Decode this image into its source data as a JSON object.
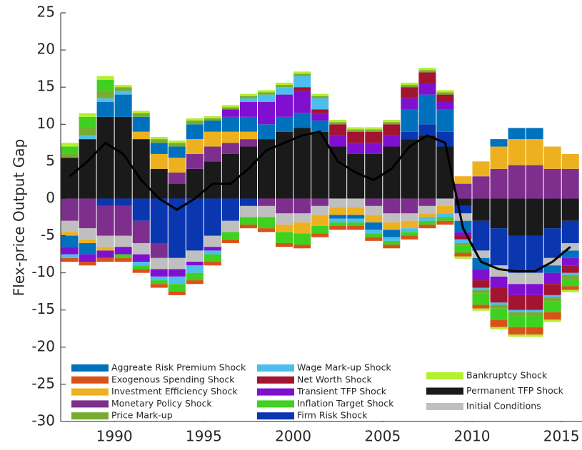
{
  "chart_data": {
    "type": "stacked-bar",
    "y_label": "Flex-price Output Gap",
    "x": [
      1987.5,
      1988.5,
      1989.5,
      1990.5,
      1991.5,
      1992.5,
      1993.5,
      1994.5,
      1995.5,
      1996.5,
      1997.5,
      1998.5,
      1999.5,
      2000.5,
      2001.5,
      2002.5,
      2003.5,
      2004.5,
      2005.5,
      2006.5,
      2007.5,
      2008.5,
      2009.5,
      2010.5,
      2011.5,
      2012.5,
      2013.5,
      2014.5,
      2015.5
    ],
    "xlim": [
      1987,
      2016.15
    ],
    "xticks": [
      1990,
      1995,
      2000,
      2005,
      2010,
      2015
    ],
    "ylim": [
      -30,
      25
    ],
    "yticks": [
      25,
      20,
      15,
      10,
      5,
      0,
      -5,
      -10,
      -15,
      -20,
      -25,
      -30
    ],
    "series": [
      {
        "name": "Aggreate Risk Premium Shock",
        "color": "#0072bd",
        "values": [
          -1.5,
          -1.5,
          2,
          3,
          2,
          1.5,
          1.5,
          2,
          1.5,
          2,
          2,
          2,
          2,
          2,
          1.5,
          -0.5,
          -0.5,
          -1,
          -1,
          3,
          4,
          3,
          -1.5,
          -1.5,
          1,
          1.5,
          1.5,
          -1,
          -1
        ]
      },
      {
        "name": "Exogenous Spending Shock",
        "color": "#d95319",
        "values": [
          -0.5,
          -0.5,
          -0.5,
          -0.5,
          -0.5,
          -0.5,
          -0.5,
          -0.5,
          -0.5,
          -0.5,
          -0.5,
          -0.5,
          -0.5,
          -0.5,
          -0.5,
          -0.5,
          -0.5,
          -0.5,
          -0.5,
          -0.5,
          -0.5,
          -0.5,
          -0.5,
          -0.5,
          -1,
          -1,
          -1,
          -1,
          -0.5
        ]
      },
      {
        "name": "Investment Efficiency Shock",
        "color": "#edb120",
        "values": [
          -0.5,
          -0.5,
          -0.5,
          0,
          1,
          2,
          2,
          2,
          2,
          1.5,
          1,
          0,
          -1,
          -1.5,
          -1.5,
          -1,
          -1,
          -1,
          -1,
          -1,
          -0.5,
          -1,
          1,
          2,
          3,
          3.5,
          3.5,
          3,
          2
        ]
      },
      {
        "name": "Monetary Policy Shock",
        "color": "#7e2f8e",
        "values": [
          -3,
          -4,
          -4,
          -4,
          -3,
          -2,
          1.5,
          2,
          2,
          1.5,
          1,
          -1,
          -2,
          -2,
          -1,
          0,
          0,
          -1,
          -2,
          -2,
          -1,
          0,
          2,
          3,
          4,
          4.5,
          4.5,
          4,
          4
        ]
      },
      {
        "name": "Price Mark-up",
        "color": "#77ac30",
        "values": [
          0.5,
          1,
          1,
          0.5,
          0.5,
          0.5,
          0.5,
          0.5,
          0.3,
          0.3,
          0.3,
          0.3,
          0.3,
          0.3,
          0.3,
          0.3,
          0.3,
          0.3,
          0.3,
          0.3,
          0.3,
          0.3,
          -0.3,
          -0.5,
          -0.5,
          -0.5,
          -0.5,
          -0.5,
          -0.5
        ]
      },
      {
        "name": "Wage Mark-up Shock",
        "color": "#4dbeee",
        "values": [
          -0.5,
          0.5,
          0.5,
          0.5,
          -0.5,
          -0.5,
          -1,
          -1,
          -0.5,
          0,
          0.5,
          1,
          1,
          1.5,
          1.5,
          -0.5,
          -0.5,
          -0.5,
          -0.5,
          -0.5,
          -0.5,
          -0.5,
          -0.5,
          -0.3,
          -0.3,
          -0.3,
          -0.3,
          -0.3,
          -0.3
        ]
      },
      {
        "name": "Net Worth Shock",
        "color": "#a2142f",
        "values": [
          0,
          0,
          0,
          0,
          0,
          0,
          0,
          0,
          0,
          0,
          0,
          0,
          0,
          0.5,
          0.5,
          1.5,
          1.5,
          1.5,
          1.5,
          1.5,
          1.5,
          1,
          -0.5,
          -1,
          -2,
          -2,
          -2,
          -1.5,
          -1
        ]
      },
      {
        "name": "Transient TFP Shock",
        "color": "#8010d0",
        "values": [
          -1,
          -1,
          -1,
          -1,
          -1,
          -1,
          -1,
          -0.5,
          -0.5,
          1,
          2,
          3,
          3,
          3,
          1,
          1.5,
          1.5,
          1.5,
          1.5,
          1.5,
          1.5,
          1,
          -0.5,
          -1.5,
          -1.5,
          -1.5,
          -1.5,
          -1.5,
          -1
        ]
      },
      {
        "name": "Inflation Target Shock",
        "color": "#40d020",
        "values": [
          1,
          1.5,
          1.5,
          -0.5,
          -0.5,
          -0.5,
          -1,
          -1,
          -1,
          -1,
          -1,
          -1.5,
          -1.5,
          -1.5,
          -1,
          -0.5,
          -0.5,
          -0.5,
          -0.5,
          -0.5,
          -0.5,
          -0.5,
          -1,
          -1.5,
          -1.5,
          -1.5,
          -1.5,
          -1.5,
          -1
        ]
      },
      {
        "name": "Firm Risk Shock",
        "color": "#0a36b0",
        "values": [
          0,
          0,
          -1,
          -1,
          -3,
          -6,
          -8,
          -7,
          -5,
          -3,
          -1,
          0,
          0,
          0,
          0,
          0,
          0,
          0,
          0,
          1,
          1.5,
          2,
          -1,
          -4,
          -5,
          -5,
          -5,
          -4,
          -3
        ]
      },
      {
        "name": "Bankruptcy Shock",
        "color": "#b4f030",
        "values": [
          0.5,
          0.5,
          0.5,
          0.3,
          0.3,
          0.3,
          0.3,
          0.3,
          0.3,
          0.3,
          0.3,
          0.3,
          0.3,
          0.3,
          0.3,
          0.3,
          0.3,
          0.3,
          0.3,
          0.3,
          0.3,
          0.3,
          -0.3,
          -0.3,
          -0.3,
          -0.3,
          -0.3,
          -0.3,
          -0.3
        ]
      },
      {
        "name": "Permanent TFP Shock",
        "color": "#1a1a1a",
        "values": [
          5.5,
          8,
          11,
          11,
          8,
          4,
          2,
          4,
          5,
          6,
          7,
          8,
          9,
          9.5,
          9,
          7,
          6,
          6,
          7,
          8,
          8.5,
          7,
          -1,
          -3,
          -4,
          -5,
          -5,
          -4,
          -3
        ]
      },
      {
        "name": "Initial Conditions",
        "color": "#bfbfbf",
        "values": [
          -1.5,
          -1.5,
          -1.5,
          -1.5,
          -1.5,
          -1.5,
          -1.5,
          -1.5,
          -1.5,
          -1.5,
          -1.5,
          -1.5,
          -1.5,
          -1.2,
          -1.2,
          -1.2,
          -1.2,
          -1.2,
          -1.2,
          -1,
          -1,
          -1,
          -1,
          -1,
          -1.5,
          -1.5,
          -1.5,
          -1,
          -1
        ]
      }
    ],
    "line": {
      "color": "#000000",
      "values": [
        3,
        5,
        7.5,
        6,
        2.5,
        0,
        -1.5,
        0,
        2,
        2,
        4,
        6.5,
        7.5,
        8.5,
        9,
        5,
        3.5,
        2.5,
        4,
        7,
        8.5,
        7.5,
        -4,
        -8.5,
        -9.5,
        -9.8,
        -9.8,
        -8.5,
        -6.5
      ]
    }
  }
}
